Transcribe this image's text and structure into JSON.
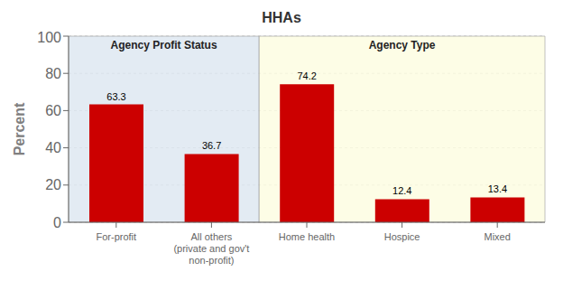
{
  "chart_data": {
    "type": "bar",
    "title": "HHAs",
    "ylabel": "Percent",
    "categories": [
      "For-profit",
      "All others\n(private and gov't\nnon-profit)",
      "Home health",
      "Hospice",
      "Mixed"
    ],
    "values": [
      63.3,
      36.7,
      74.2,
      12.4,
      13.4
    ],
    "color": "#cc0000",
    "ylim": [
      0,
      100
    ],
    "yticks": [
      0,
      20,
      40,
      60,
      80,
      100
    ],
    "grid": true,
    "data_labels": true,
    "annotations": [
      "Agency Profit Status",
      "Agency Type"
    ]
  }
}
